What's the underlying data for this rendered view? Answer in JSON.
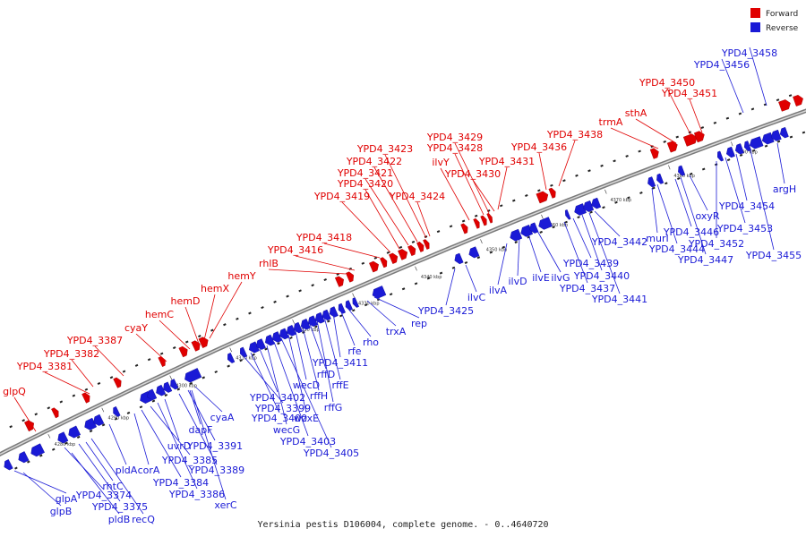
{
  "caption": "Yersinia pestis D106004, complete genome. - 0..4640720",
  "legend": [
    {
      "label": "Forward",
      "color": "#e00000"
    },
    {
      "label": "Reverse",
      "color": "#1a1ad6"
    }
  ],
  "ticks": [
    "4280 kbp",
    "4290 kbp",
    "4300 kbp",
    "4310 kbp",
    "4320 kbp",
    "4330 kbp",
    "4340 kbp",
    "4350 kbp",
    "4360 kbp",
    "4370 kbp",
    "4380 kbp",
    "4390 kbp"
  ],
  "forward_labels": [
    "glpQ",
    "YPD4_3381",
    "YPD4_3382",
    "YPD4_3387",
    "cyaY",
    "hemC",
    "hemD",
    "hemX",
    "hemY",
    "rhlB",
    "YPD4_3416",
    "YPD4_3418",
    "YPD4_3419",
    "YPD4_3420",
    "YPD4_3421",
    "YPD4_3422",
    "YPD4_3423",
    "YPD4_3424",
    "ilvY",
    "YPD4_3428",
    "YPD4_3429",
    "YPD4_3430",
    "YPD4_3431",
    "YPD4_3436",
    "YPD4_3438",
    "trmA",
    "sthA",
    "YPD4_3450",
    "YPD4_3451"
  ],
  "reverse_labels": [
    "glpB",
    "glpA",
    "pldB",
    "YPD4_3374",
    "YPD4_3375",
    "rhtC",
    "recQ",
    "pldA",
    "corA",
    "YPD4_3384",
    "YPD4_3385",
    "YPD4_3386",
    "uvrD",
    "YPD4_3389",
    "YPD4_3391",
    "xerC",
    "dapF",
    "cyaA",
    "YPD4_3399",
    "YPD4_3400",
    "YPD4_3402",
    "wecG",
    "YPD4_3403",
    "YPD4_3405",
    "wzxE",
    "wecD",
    "rffH",
    "rffD",
    "rffG",
    "rffE",
    "YPD4_3411",
    "rfe",
    "rho",
    "trxA",
    "rep",
    "YPD4_3425",
    "ilvC",
    "ilvA",
    "ilvD",
    "ilvE",
    "ilvG",
    "YPD4_3437",
    "YPD4_3439",
    "YPD4_3440",
    "YPD4_3441",
    "YPD4_3442",
    "murI",
    "YPD4_3444",
    "YPD4_3446",
    "YPD4_3447",
    "oxyR",
    "YPD4_3452",
    "YPD4_3453",
    "YPD4_3454",
    "YPD4_3455",
    "argH",
    "YPD4_3456",
    "YPD4_3458"
  ]
}
